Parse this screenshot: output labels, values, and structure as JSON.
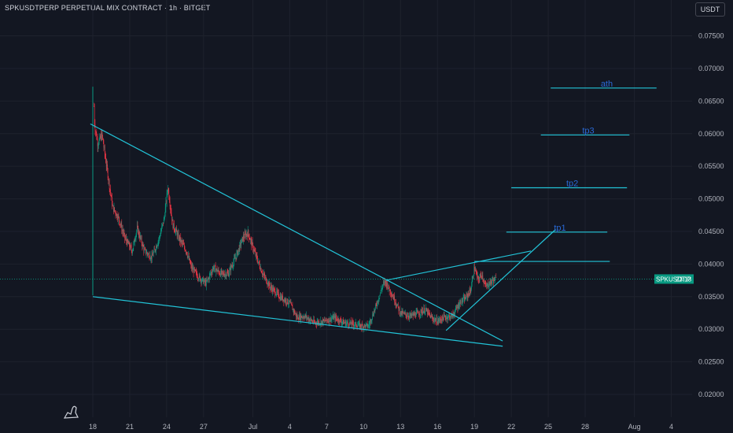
{
  "header": {
    "title": "SPKUSDTPERP PERPETUAL MIX CONTRACT · 1h · BITGET",
    "currency_button": "USDT"
  },
  "price_tag": {
    "symbol": "SPKUSDT.P",
    "countdown": "23:13",
    "color": "#089981"
  },
  "colors": {
    "background": "#131722",
    "up_candle": "#089981",
    "down_candle": "#f23645",
    "trendline": "#22c4d8",
    "annotation_text": "#2a6ad8"
  },
  "chart_data": {
    "type": "candlestick",
    "timeframe": "1h",
    "y_axis": {
      "ticks": [
        "0.07500",
        "0.07000",
        "0.06500",
        "0.06000",
        "0.05500",
        "0.05000",
        "0.04500",
        "0.04000",
        "0.03500",
        "0.03000",
        "0.02500",
        "0.02000"
      ],
      "range": [
        0.0165,
        0.0805
      ],
      "position": "right"
    },
    "x_axis": {
      "ticks": [
        {
          "label": "18",
          "day": 0
        },
        {
          "label": "21",
          "day": 3
        },
        {
          "label": "24",
          "day": 6
        },
        {
          "label": "27",
          "day": 9
        },
        {
          "label": "Jul",
          "day": 13
        },
        {
          "label": "4",
          "day": 16
        },
        {
          "label": "7",
          "day": 19
        },
        {
          "label": "10",
          "day": 22
        },
        {
          "label": "13",
          "day": 25
        },
        {
          "label": "16",
          "day": 28
        },
        {
          "label": "19",
          "day": 31
        },
        {
          "label": "22",
          "day": 34
        },
        {
          "label": "25",
          "day": 37
        },
        {
          "label": "28",
          "day": 40
        },
        {
          "label": "Aug",
          "day": 44
        },
        {
          "label": "4",
          "day": 47
        }
      ],
      "range_days": [
        -6.6,
        50.6
      ],
      "start": "June 18"
    },
    "price_path": [
      [
        0.0,
        0.0355
      ],
      [
        0.05,
        0.0672
      ],
      [
        0.15,
        0.0612
      ],
      [
        0.4,
        0.0585
      ],
      [
        0.75,
        0.0598
      ],
      [
        1.2,
        0.054
      ],
      [
        1.6,
        0.0488
      ],
      [
        2.1,
        0.047
      ],
      [
        2.6,
        0.044
      ],
      [
        3.2,
        0.042
      ],
      [
        3.6,
        0.0455
      ],
      [
        4.2,
        0.042
      ],
      [
        4.8,
        0.041
      ],
      [
        5.4,
        0.044
      ],
      [
        5.8,
        0.047
      ],
      [
        6.1,
        0.0518
      ],
      [
        6.5,
        0.046
      ],
      [
        7.0,
        0.044
      ],
      [
        7.6,
        0.042
      ],
      [
        8.0,
        0.0395
      ],
      [
        8.6,
        0.038
      ],
      [
        9.2,
        0.037
      ],
      [
        9.8,
        0.0395
      ],
      [
        10.4,
        0.0385
      ],
      [
        11.0,
        0.0385
      ],
      [
        11.6,
        0.041
      ],
      [
        12.2,
        0.044
      ],
      [
        12.6,
        0.0448
      ],
      [
        13.2,
        0.0415
      ],
      [
        13.8,
        0.0385
      ],
      [
        14.4,
        0.0365
      ],
      [
        15.2,
        0.035
      ],
      [
        16.0,
        0.034
      ],
      [
        16.6,
        0.0318
      ],
      [
        17.2,
        0.032
      ],
      [
        18.0,
        0.031
      ],
      [
        18.8,
        0.0312
      ],
      [
        19.6,
        0.0318
      ],
      [
        20.4,
        0.031
      ],
      [
        21.2,
        0.0308
      ],
      [
        21.8,
        0.0305
      ],
      [
        22.4,
        0.0305
      ],
      [
        23.0,
        0.0335
      ],
      [
        23.6,
        0.037
      ],
      [
        23.8,
        0.0372
      ],
      [
        24.4,
        0.035
      ],
      [
        25.0,
        0.0325
      ],
      [
        25.8,
        0.032
      ],
      [
        26.5,
        0.0325
      ],
      [
        27.0,
        0.033
      ],
      [
        27.5,
        0.0318
      ],
      [
        28.0,
        0.0312
      ],
      [
        28.5,
        0.0318
      ],
      [
        29.2,
        0.032
      ],
      [
        29.8,
        0.034
      ],
      [
        30.3,
        0.0348
      ],
      [
        30.7,
        0.036
      ],
      [
        31.0,
        0.0395
      ],
      [
        31.3,
        0.0375
      ],
      [
        31.6,
        0.0385
      ],
      [
        31.9,
        0.0365
      ],
      [
        32.5,
        0.0375
      ],
      [
        32.8,
        0.0377
      ]
    ],
    "current_price": 0.0377,
    "drawings": [
      {
        "kind": "trendline",
        "points": [
          [
            -0.2,
            0.0615
          ],
          [
            33.3,
            0.0282
          ]
        ]
      },
      {
        "kind": "trendline",
        "points": [
          [
            0.0,
            0.035
          ],
          [
            33.3,
            0.0274
          ]
        ]
      },
      {
        "kind": "trendline",
        "points": [
          [
            23.8,
            0.0375
          ],
          [
            35.6,
            0.042
          ]
        ]
      },
      {
        "kind": "trendline",
        "points": [
          [
            28.7,
            0.0298
          ],
          [
            37.6,
            0.0453
          ]
        ]
      },
      {
        "kind": "trendline",
        "points": [
          [
            31.0,
            0.0404
          ],
          [
            42.0,
            0.0404
          ]
        ]
      },
      {
        "kind": "level",
        "label": "tp1",
        "points": [
          [
            33.6,
            0.0449
          ],
          [
            41.8,
            0.0449
          ]
        ]
      },
      {
        "kind": "level",
        "label": "tp2",
        "points": [
          [
            34.0,
            0.0517
          ],
          [
            43.4,
            0.0517
          ]
        ]
      },
      {
        "kind": "level",
        "label": "tp3",
        "points": [
          [
            36.4,
            0.0598
          ],
          [
            43.6,
            0.0598
          ]
        ]
      },
      {
        "kind": "level",
        "label": "ath",
        "points": [
          [
            37.2,
            0.067
          ],
          [
            45.8,
            0.067
          ]
        ]
      }
    ]
  }
}
